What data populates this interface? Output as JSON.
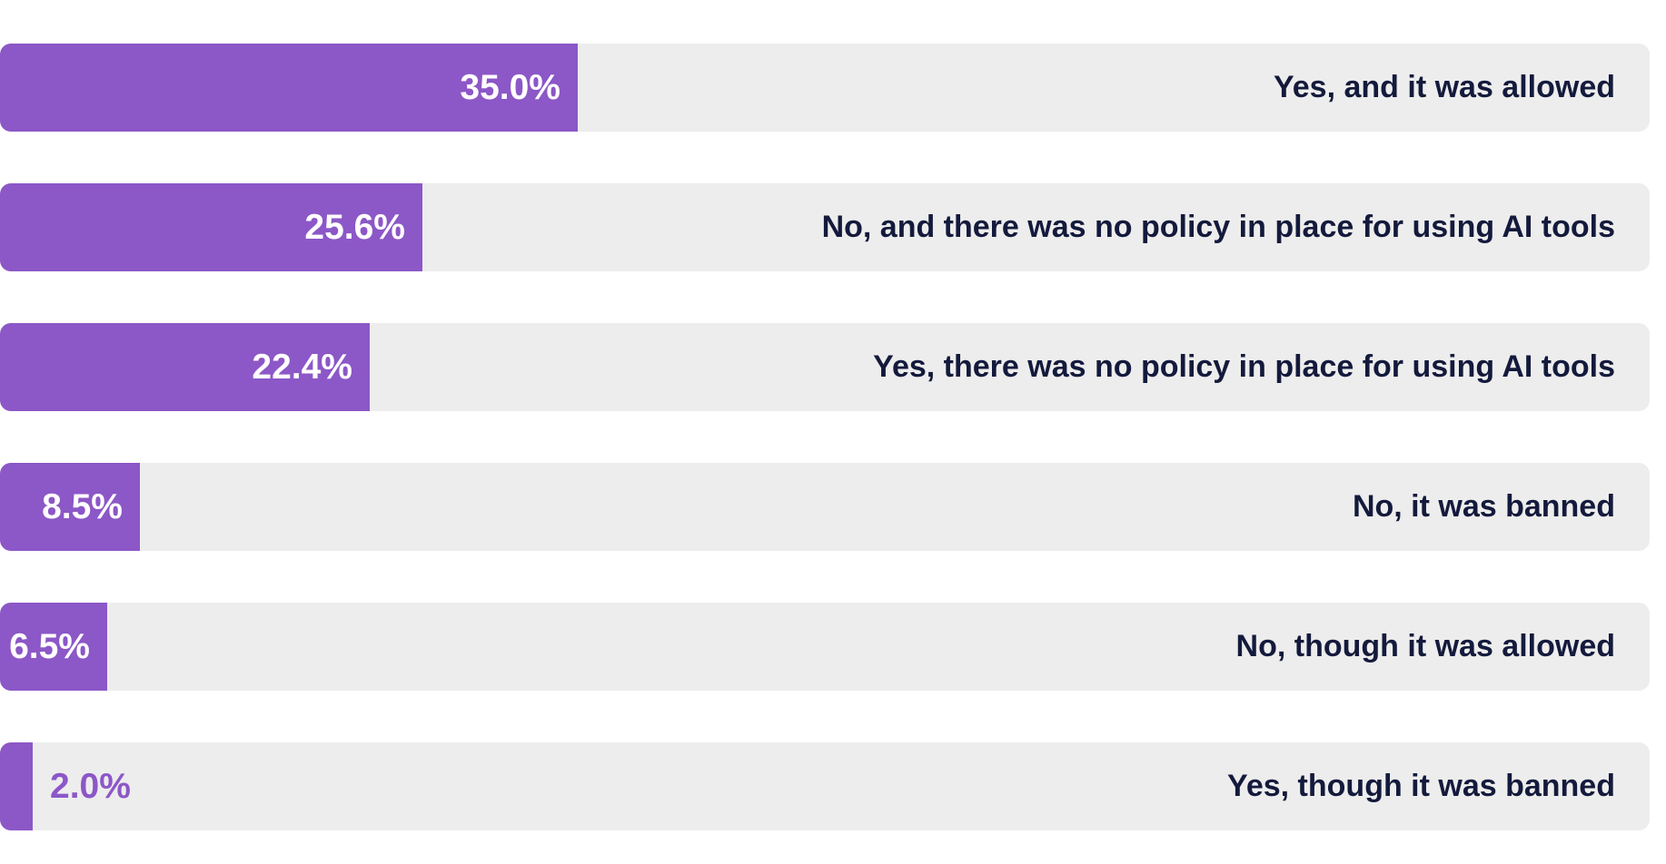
{
  "chart_data": {
    "type": "bar",
    "orientation": "horizontal",
    "categories": [
      "Yes, and it was allowed",
      "No, and there was no policy in place for using AI tools",
      "Yes, there was no policy in place for using AI tools",
      "No, it was banned",
      "No, though it was allowed",
      "Yes, though it was banned"
    ],
    "values": [
      35.0,
      25.6,
      22.4,
      8.5,
      6.5,
      2.0
    ],
    "value_labels": [
      "35.0%",
      "25.6%",
      "22.4%",
      "8.5%",
      "6.5%",
      "2.0%"
    ],
    "xlim": [
      0,
      100
    ],
    "unit": "%",
    "grid": false,
    "legend": "none",
    "colors": {
      "bar": "#8c57c7",
      "track": "#ededed",
      "label_text": "#141a3c",
      "value_text_inside": "#ffffff",
      "value_text_outside": "#8c57c7"
    }
  }
}
